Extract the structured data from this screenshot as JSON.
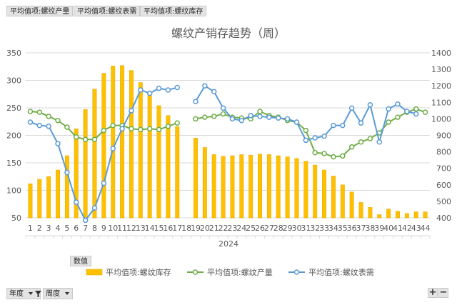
{
  "filters": {
    "labels": [
      "平均值项:螺纹产量",
      "平均值项:螺纹表需",
      "平均值项:螺纹库存"
    ]
  },
  "values_button": "数值",
  "axis_fields": {
    "year": "年度",
    "week": "周度"
  },
  "colors": {
    "inventory": "#ffc000",
    "production": "#70ad47",
    "demand": "#5b9bd5"
  },
  "chart_data": {
    "type": "bar",
    "title": "螺纹产销存趋势（周）",
    "year_label": "2024",
    "categories": [
      "1",
      "2",
      "3",
      "4",
      "5",
      "6",
      "7",
      "8",
      "9",
      "10",
      "11",
      "12",
      "13",
      "14",
      "15",
      "16",
      "17",
      "18",
      "19",
      "20",
      "21",
      "22",
      "23",
      "24",
      "25",
      "26",
      "27",
      "28",
      "29",
      "30",
      "31",
      "32",
      "33",
      "34",
      "35",
      "36",
      "37",
      "38",
      "39",
      "40",
      "41",
      "42",
      "43",
      "44"
    ],
    "left_axis": {
      "min": 50,
      "max": 350,
      "step": 50,
      "ticks": [
        "50",
        "100",
        "150",
        "200",
        "250",
        "300",
        "350"
      ]
    },
    "right_axis": {
      "min": 400,
      "max": 1400,
      "step": 100,
      "ticks": [
        "400",
        "500",
        "600",
        "700",
        "800",
        "900",
        "1000",
        "1100",
        "1200",
        "1300",
        "1400"
      ]
    },
    "series": [
      {
        "name": "平均值项:螺纹库存",
        "type": "bar",
        "axis": "left",
        "values": [
          112,
          120,
          125,
          137,
          163,
          212,
          247,
          284,
          313,
          326,
          327,
          318,
          296,
          278,
          254,
          236,
          216,
          null,
          195,
          178,
          165,
          162,
          163,
          165,
          164,
          166,
          165,
          163,
          161,
          158,
          153,
          146,
          137,
          126,
          110,
          97,
          78,
          69,
          56,
          66,
          62,
          58,
          61,
          61
        ]
      },
      {
        "name": "平均值项:螺纹产量",
        "type": "line",
        "axis": "right",
        "values": [
          1045,
          1040,
          1015,
          990,
          950,
          890,
          875,
          875,
          930,
          960,
          960,
          940,
          935,
          940,
          935,
          955,
          975,
          null,
          1000,
          1010,
          1015,
          1030,
          1010,
          1005,
          1000,
          1045,
          1020,
          1010,
          990,
          980,
          930,
          795,
          790,
          770,
          775,
          830,
          860,
          880,
          915,
          980,
          1010,
          1040,
          1060,
          1040
        ]
      },
      {
        "name": "平均值项:螺纹表需",
        "type": "line",
        "axis": "right",
        "values": [
          980,
          960,
          955,
          850,
          675,
          495,
          385,
          460,
          610,
          820,
          940,
          1050,
          1175,
          1155,
          1185,
          1175,
          1190,
          null,
          1105,
          1200,
          1165,
          1065,
          1000,
          990,
          1020,
          1015,
          1010,
          1005,
          1000,
          980,
          870,
          885,
          895,
          960,
          960,
          1065,
          975,
          1085,
          860,
          1060,
          1090,
          1045,
          1030,
          null
        ]
      }
    ],
    "legend_position": "bottom",
    "grid": true
  }
}
